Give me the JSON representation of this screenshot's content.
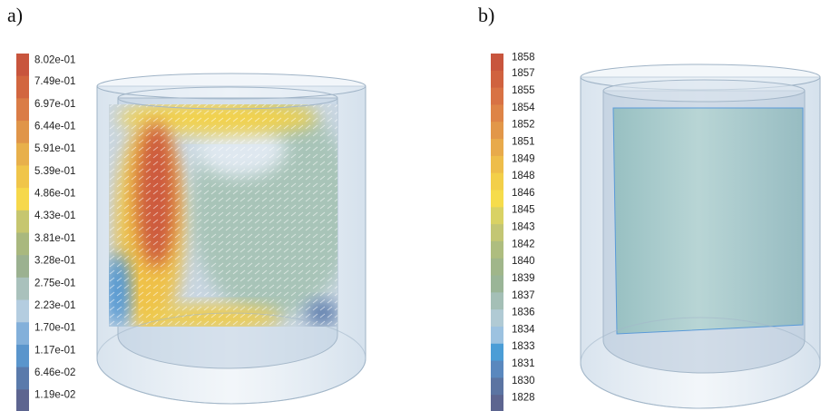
{
  "panels": [
    {
      "label": "a)",
      "ticks": [
        "8.02e-01",
        "7.49e-01",
        "6.97e-01",
        "6.44e-01",
        "5.91e-01",
        "5.39e-01",
        "4.86e-01",
        "4.33e-01",
        "3.81e-01",
        "3.28e-01",
        "2.75e-01",
        "2.23e-01",
        "1.70e-01",
        "1.17e-01",
        "6.46e-02",
        "1.19e-02"
      ],
      "colors": [
        "#c8553d",
        "#d2663f",
        "#da7c46",
        "#e09549",
        "#e8b04b",
        "#f0c54a",
        "#f6d84b",
        "#c6c66f",
        "#a9b87e",
        "#9bb190",
        "#a9c1bc",
        "#b4cde0",
        "#83b0da",
        "#5a95cc",
        "#5a7aab",
        "#5d6590"
      ]
    },
    {
      "label": "b)",
      "ticks": [
        "1858",
        "1857",
        "1855",
        "1854",
        "1852",
        "1851",
        "1849",
        "1848",
        "1846",
        "1845",
        "1843",
        "1842",
        "1840",
        "1839",
        "1837",
        "1836",
        "1834",
        "1833",
        "1831",
        "1830",
        "1828"
      ],
      "colors": [
        "#c8553d",
        "#d0623f",
        "#d87244",
        "#de8447",
        "#e29749",
        "#e8aa4b",
        "#eebd4a",
        "#f3cf49",
        "#f6dc4b",
        "#d9d264",
        "#c3c674",
        "#aebd7f",
        "#a0b68a",
        "#9ab597",
        "#a4bfb6",
        "#b0cad4",
        "#9cc2e0",
        "#4b9dd6",
        "#5a88be",
        "#5b74a2",
        "#5d6590"
      ]
    }
  ]
}
